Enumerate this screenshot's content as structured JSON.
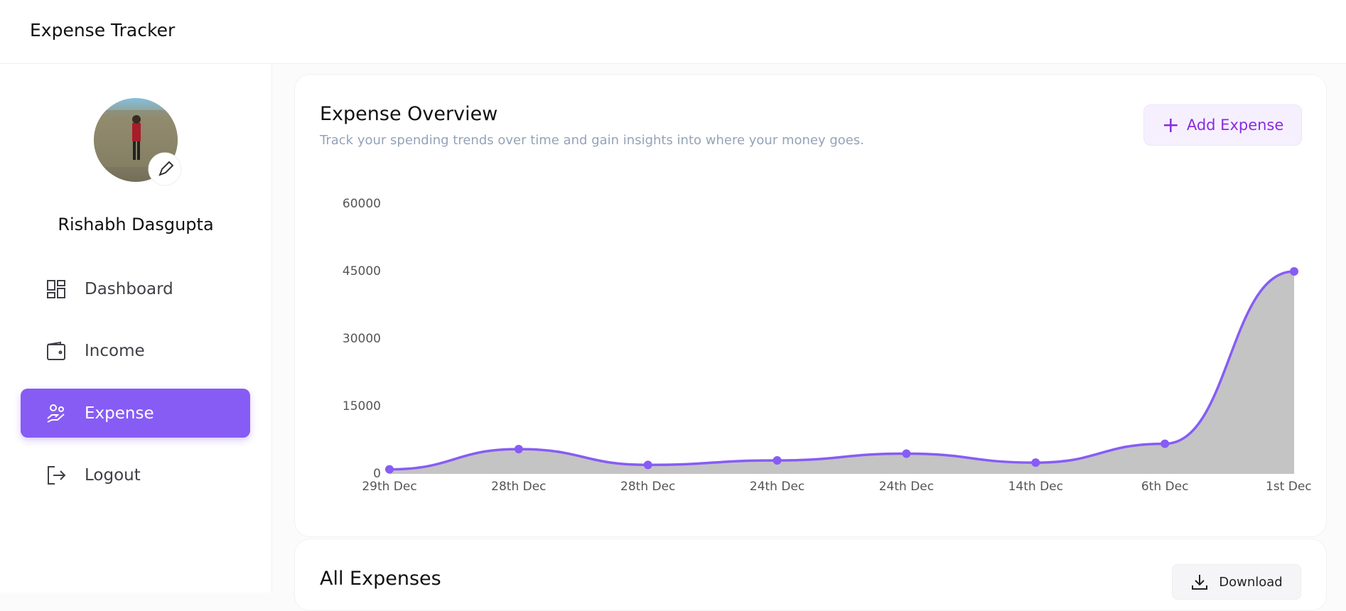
{
  "header": {
    "title": "Expense Tracker"
  },
  "profile": {
    "name": "Rishabh Dasgupta"
  },
  "menu": [
    {
      "label": "Dashboard"
    },
    {
      "label": "Income"
    },
    {
      "label": "Expense",
      "active": true
    },
    {
      "label": "Logout"
    }
  ],
  "overview": {
    "title": "Expense Overview",
    "subtitle": "Track your spending trends over time and gain insights into where your money goes.",
    "button": "Add Expense"
  },
  "chart_data": {
    "type": "area",
    "categories": [
      "29th Dec",
      "28th Dec",
      "28th Dec",
      "24th Dec",
      "24th Dec",
      "14th Dec",
      "6th Dec",
      "1st Dec"
    ],
    "values": [
      1000,
      5500,
      2000,
      3000,
      4500,
      2500,
      6700,
      45000
    ],
    "color": "#875cf5",
    "fill": "#c4c4c4",
    "ylim": [
      0,
      60000
    ],
    "yticks": [
      0,
      15000,
      30000,
      45000,
      60000
    ],
    "grid": false
  },
  "expenses": {
    "title": "All Expenses",
    "button": "Download"
  }
}
